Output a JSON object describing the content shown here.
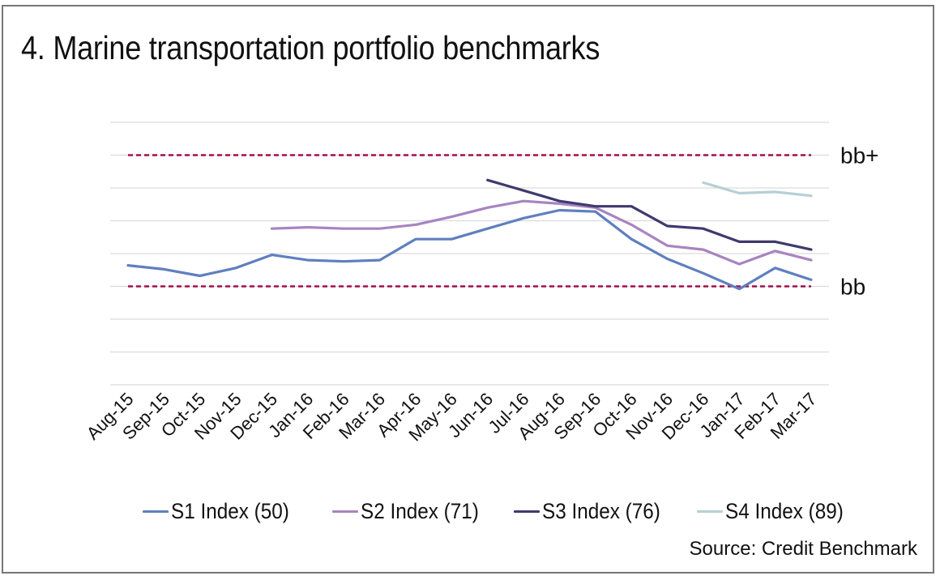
{
  "chart_data": {
    "type": "line",
    "title": "4. Marine transportation portfolio benchmarks",
    "xlabel": "",
    "ylabel": "",
    "y_units": "rating notches relative to bb (bb = 0, bb+ = 1)",
    "ylim": [
      -0.75,
      1.25
    ],
    "y_gridline_step": 0.25,
    "grid": true,
    "x": [
      "Aug-15",
      "Sep-15",
      "Oct-15",
      "Nov-15",
      "Dec-15",
      "Jan-16",
      "Feb-16",
      "Mar-16",
      "Apr-16",
      "May-16",
      "Jun-16",
      "Jul-16",
      "Aug-16",
      "Sep-16",
      "Oct-16",
      "Nov-16",
      "Dec-16",
      "Jan-17",
      "Feb-17",
      "Mar-17"
    ],
    "reference_lines": [
      {
        "label": "bb+",
        "value": 1.0,
        "color": "#A0104A",
        "style": "dashed"
      },
      {
        "label": "bb",
        "value": 0.0,
        "color": "#A0104A",
        "style": "dashed"
      }
    ],
    "series": [
      {
        "name": "S1 Index (50)",
        "color": "#5F7FBF",
        "values": [
          0.16,
          0.13,
          0.08,
          0.14,
          0.24,
          0.2,
          0.19,
          0.2,
          0.36,
          0.36,
          0.44,
          0.52,
          0.58,
          0.57,
          0.36,
          0.21,
          0.1,
          -0.02,
          0.14,
          0.05
        ]
      },
      {
        "name": "S2 Index (71)",
        "color": "#A884C0",
        "values": [
          null,
          null,
          null,
          null,
          0.44,
          0.45,
          0.44,
          0.44,
          0.47,
          0.53,
          0.6,
          0.65,
          0.63,
          0.6,
          0.47,
          0.31,
          0.28,
          0.17,
          0.27,
          0.2
        ]
      },
      {
        "name": "S3 Index (76)",
        "color": "#3E3A6E",
        "values": [
          null,
          null,
          null,
          null,
          null,
          null,
          null,
          null,
          null,
          null,
          0.81,
          0.73,
          0.65,
          0.61,
          0.61,
          0.46,
          0.44,
          0.34,
          0.34,
          0.28
        ]
      },
      {
        "name": "S4 Index (89)",
        "color": "#B6CFD6",
        "values": [
          null,
          null,
          null,
          null,
          null,
          null,
          null,
          null,
          null,
          null,
          null,
          null,
          null,
          null,
          null,
          null,
          0.79,
          0.71,
          0.72,
          0.69
        ]
      }
    ],
    "legend_position": "bottom",
    "source": "Source: Credit Benchmark"
  }
}
